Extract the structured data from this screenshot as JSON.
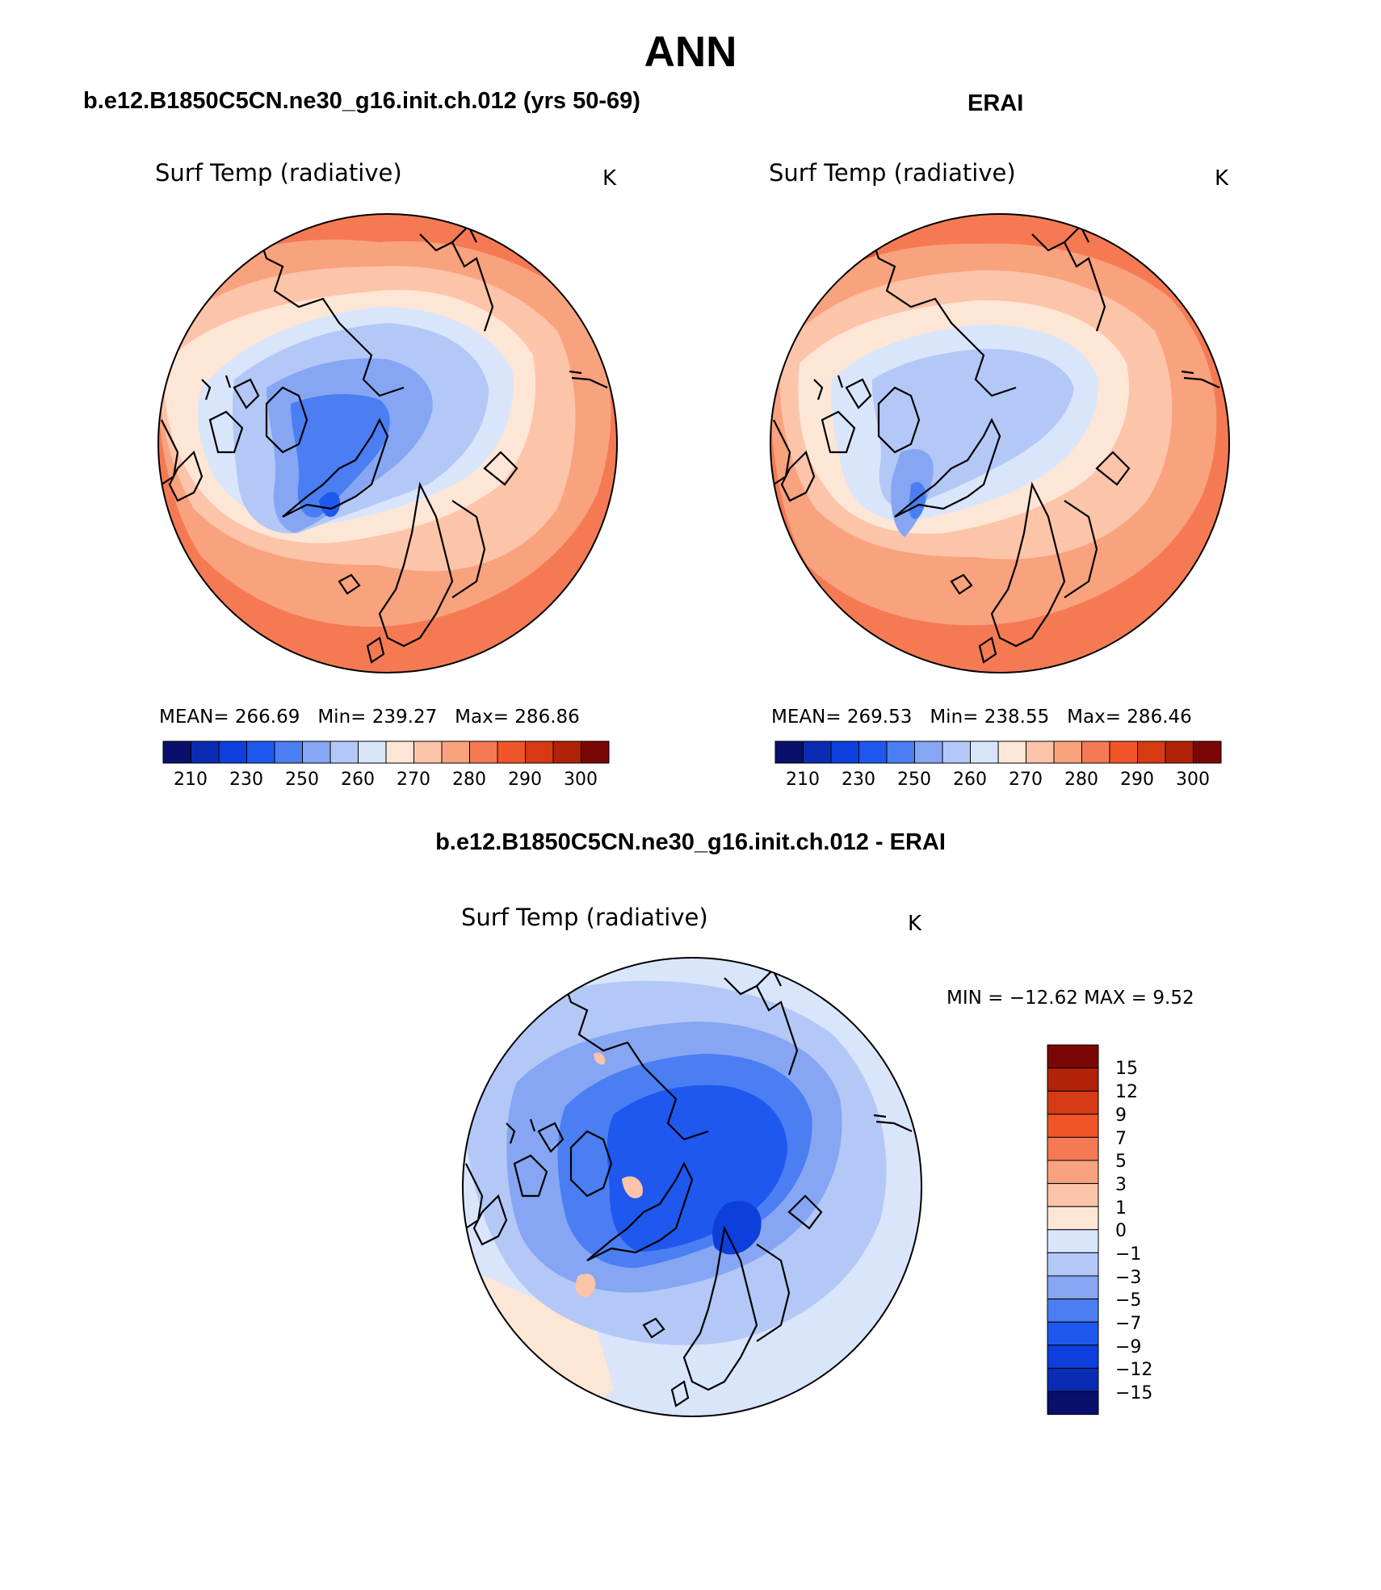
{
  "figure": {
    "title": "ANN",
    "colors": {
      "abs_palette": [
        "#08106b",
        "#0a2cb3",
        "#0c3fdc",
        "#1f58ef",
        "#4a7ef2",
        "#86a6f3",
        "#b3c8f6",
        "#d9e5fb",
        "#fde6d6",
        "#fcc4a9",
        "#f9a27e",
        "#f57a53",
        "#ef5528",
        "#d63a12",
        "#b22208",
        "#7a0704"
      ],
      "diff_palette": [
        "#08106b",
        "#0a2cb3",
        "#0c3fdc",
        "#1f58ef",
        "#4a7ef2",
        "#86a6f3",
        "#b3c8f6",
        "#d9e5fb",
        "#fde6d6",
        "#fcc4a9",
        "#f9a27e",
        "#f57a53",
        "#ef5528",
        "#d63a12",
        "#b22208",
        "#7a0704"
      ],
      "coastline": "#000000"
    }
  },
  "panels": {
    "model": {
      "case_title": "b.e12.B1850C5CN.ne30_g16.init.ch.012 (yrs 50-69)",
      "variable": "Surf Temp (radiative)",
      "units": "K",
      "mean_label": "MEAN=",
      "mean": "266.69",
      "min_label": "Min=",
      "min": "239.27",
      "max_label": "Max=",
      "max": "286.86",
      "ticks": [
        "210",
        "230",
        "250",
        "260",
        "270",
        "280",
        "290",
        "300"
      ]
    },
    "obs": {
      "case_title": "ERAI",
      "variable": "Surf Temp (radiative)",
      "units": "K",
      "mean_label": "MEAN=",
      "mean": "269.53",
      "min_label": "Min=",
      "min": "238.55",
      "max_label": "Max=",
      "max": "286.46",
      "ticks": [
        "210",
        "230",
        "250",
        "260",
        "270",
        "280",
        "290",
        "300"
      ]
    },
    "diff": {
      "case_title": "b.e12.B1850C5CN.ne30_g16.init.ch.012 - ERAI",
      "variable": "Surf Temp (radiative)",
      "units": "K",
      "minmax": "MIN = −12.62  MAX =     9.52",
      "ticks": [
        "15",
        "12",
        "9",
        "7",
        "5",
        "3",
        "1",
        "0",
        "−1",
        "−3",
        "−5",
        "−7",
        "−9",
        "−12",
        "−15"
      ]
    }
  }
}
